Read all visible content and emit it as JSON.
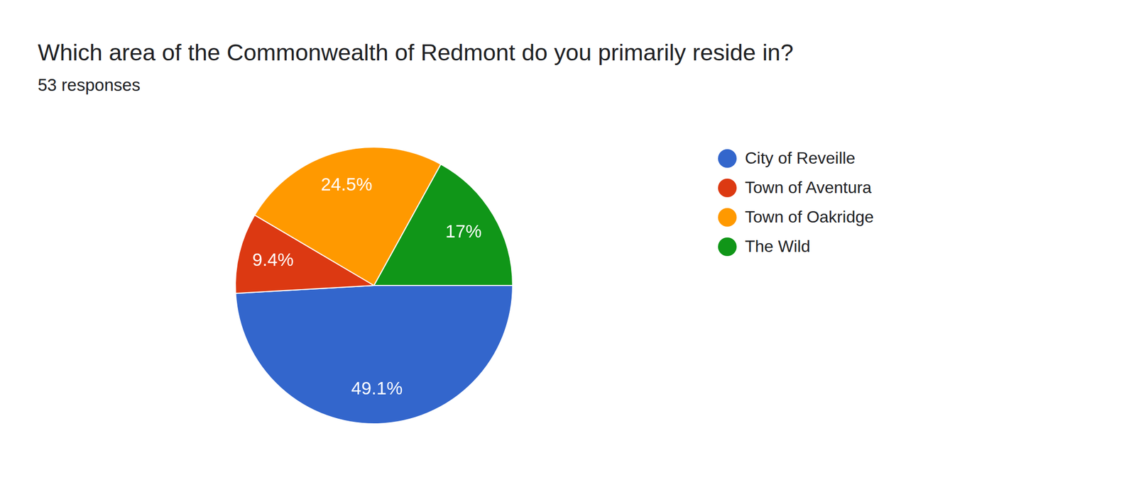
{
  "chart_data": {
    "type": "pie",
    "title": "Which area of the Commonwealth of Redmont do you primarily reside in?",
    "subtitle": "53 responses",
    "categories": [
      "City of Reveille",
      "Town of Aventura",
      "Town of Oakridge",
      "The Wild"
    ],
    "values": [
      49.1,
      9.4,
      24.5,
      17
    ],
    "value_labels": [
      "49.1%",
      "9.4%",
      "24.5%",
      "17%"
    ],
    "colors": [
      "#3366cc",
      "#dc3912",
      "#ff9900",
      "#109618"
    ],
    "data_labels": true,
    "legend": "right"
  }
}
